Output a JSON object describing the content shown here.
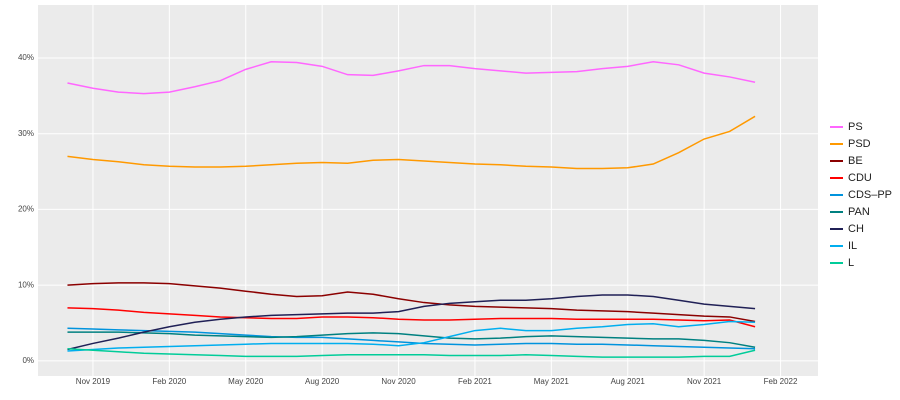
{
  "chart_data": {
    "type": "line",
    "x": [
      "2019-10",
      "2019-11",
      "2019-12",
      "2020-01",
      "2020-02",
      "2020-03",
      "2020-04",
      "2020-05",
      "2020-06",
      "2020-07",
      "2020-08",
      "2020-09",
      "2020-10",
      "2020-11",
      "2020-12",
      "2021-01",
      "2021-02",
      "2021-03",
      "2021-04",
      "2021-05",
      "2021-06",
      "2021-07",
      "2021-08",
      "2021-09",
      "2021-10",
      "2021-11",
      "2021-12",
      "2022-01"
    ],
    "xlim": [
      "2019-09",
      "2022-03"
    ],
    "xticks": [
      {
        "value": "2019-11",
        "label": "Nov 2019"
      },
      {
        "value": "2020-02",
        "label": "Feb 2020"
      },
      {
        "value": "2020-05",
        "label": "May 2020"
      },
      {
        "value": "2020-08",
        "label": "Aug 2020"
      },
      {
        "value": "2020-11",
        "label": "Nov 2020"
      },
      {
        "value": "2021-02",
        "label": "Feb 2021"
      },
      {
        "value": "2021-05",
        "label": "May 2021"
      },
      {
        "value": "2021-08",
        "label": "Aug 2021"
      },
      {
        "value": "2021-11",
        "label": "Nov 2021"
      },
      {
        "value": "2022-02",
        "label": "Feb 2022"
      }
    ],
    "ylim": [
      -2,
      47
    ],
    "yticks": [
      {
        "value": 0,
        "label": "0%"
      },
      {
        "value": 10,
        "label": "10%"
      },
      {
        "value": 20,
        "label": "20%"
      },
      {
        "value": 30,
        "label": "30%"
      },
      {
        "value": 40,
        "label": "40%"
      }
    ],
    "grid": true,
    "legend": "right",
    "series": [
      {
        "name": "PS",
        "color": "#ff66ff",
        "values": [
          36.7,
          36,
          35.5,
          35.3,
          35.5,
          36.2,
          37,
          38.5,
          39.5,
          39.4,
          38.9,
          37.8,
          37.7,
          38.3,
          39,
          39,
          38.6,
          38.3,
          38,
          38.1,
          38.2,
          38.6,
          38.9,
          39.5,
          39.1,
          38,
          37.5,
          36.8
        ]
      },
      {
        "name": "PSD",
        "color": "#ff9900",
        "values": [
          27,
          26.6,
          26.3,
          25.9,
          25.7,
          25.6,
          25.6,
          25.7,
          25.9,
          26.1,
          26.2,
          26.1,
          26.5,
          26.6,
          26.4,
          26.2,
          26,
          25.9,
          25.7,
          25.6,
          25.4,
          25.4,
          25.5,
          26,
          27.5,
          29.3,
          30.3,
          32.3
        ]
      },
      {
        "name": "BE",
        "color": "#8b0000",
        "values": [
          10,
          10.2,
          10.3,
          10.3,
          10.2,
          9.9,
          9.6,
          9.2,
          8.8,
          8.5,
          8.6,
          9.1,
          8.8,
          8.2,
          7.7,
          7.4,
          7.2,
          7.1,
          7,
          6.9,
          6.7,
          6.6,
          6.5,
          6.3,
          6.1,
          5.9,
          5.8,
          5.2
        ]
      },
      {
        "name": "CDU",
        "color": "#ff0000",
        "values": [
          7,
          6.9,
          6.7,
          6.4,
          6.2,
          6,
          5.8,
          5.7,
          5.6,
          5.6,
          5.8,
          5.8,
          5.7,
          5.5,
          5.4,
          5.4,
          5.5,
          5.6,
          5.6,
          5.6,
          5.5,
          5.5,
          5.5,
          5.5,
          5.4,
          5.3,
          5.4,
          4.5
        ]
      },
      {
        "name": "CDS–PP",
        "color": "#0093dd",
        "values": [
          4.3,
          4.2,
          4.1,
          4,
          3.9,
          3.8,
          3.6,
          3.4,
          3.2,
          3.1,
          3.1,
          2.9,
          2.7,
          2.5,
          2.3,
          2.2,
          2.1,
          2.2,
          2.3,
          2.3,
          2.2,
          2.2,
          2.1,
          2,
          1.9,
          1.8,
          1.7,
          1.6
        ]
      },
      {
        "name": "PAN",
        "color": "#008080",
        "values": [
          3.8,
          3.8,
          3.8,
          3.7,
          3.6,
          3.4,
          3.3,
          3.2,
          3.1,
          3.2,
          3.4,
          3.6,
          3.7,
          3.6,
          3.3,
          3,
          2.9,
          3,
          3.2,
          3.3,
          3.2,
          3.1,
          3,
          2.9,
          2.9,
          2.7,
          2.4,
          1.8
        ]
      },
      {
        "name": "CH",
        "color": "#202056",
        "values": [
          1.5,
          2.3,
          3,
          3.8,
          4.5,
          5.1,
          5.5,
          5.8,
          6,
          6.1,
          6.2,
          6.3,
          6.3,
          6.5,
          7.2,
          7.6,
          7.8,
          8,
          8,
          8.2,
          8.5,
          8.7,
          8.7,
          8.5,
          8,
          7.5,
          7.2,
          6.9
        ]
      },
      {
        "name": "IL",
        "color": "#00aeef",
        "values": [
          1.3,
          1.5,
          1.7,
          1.8,
          1.9,
          2,
          2.1,
          2.2,
          2.3,
          2.3,
          2.3,
          2.3,
          2.2,
          2,
          2.4,
          3.2,
          4,
          4.3,
          4,
          4,
          4.3,
          4.5,
          4.8,
          4.9,
          4.5,
          4.8,
          5.2,
          5.1
        ]
      },
      {
        "name": "L",
        "color": "#00cc99",
        "values": [
          1.6,
          1.4,
          1.2,
          1,
          0.9,
          0.8,
          0.7,
          0.6,
          0.6,
          0.6,
          0.7,
          0.8,
          0.8,
          0.8,
          0.8,
          0.7,
          0.7,
          0.7,
          0.8,
          0.7,
          0.6,
          0.5,
          0.5,
          0.5,
          0.5,
          0.6,
          0.6,
          1.4
        ]
      }
    ]
  }
}
